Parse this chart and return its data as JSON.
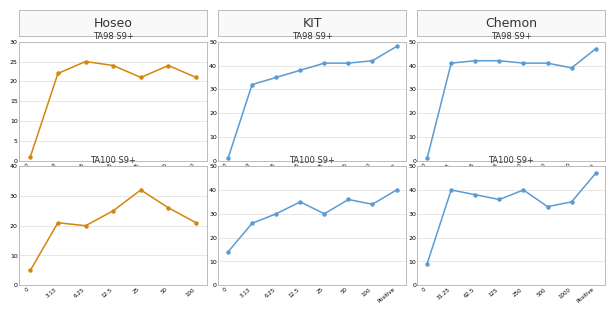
{
  "lab_titles": [
    "Hoseo",
    "KIT",
    "Chemon"
  ],
  "subplot_titles": [
    [
      "TA98 S9+",
      "TA100 S9+"
    ],
    [
      "TA98 S9+",
      "TA100 S9+"
    ],
    [
      "TA98 S9+",
      "TA100 S9+"
    ]
  ],
  "line_color_hoseo": "#D4860A",
  "line_color_kit": "#5B9BD5",
  "line_color_chemon": "#5B9BD5",
  "hoseo_ta98_x": [
    "0",
    "3.13",
    "6.25",
    "12.5",
    "25",
    "50",
    "100"
  ],
  "hoseo_ta98_y": [
    1,
    22,
    25,
    24,
    21,
    24,
    21
  ],
  "hoseo_ta100_x": [
    "0",
    "3.13",
    "6.25",
    "12.5",
    "25",
    "50",
    "100"
  ],
  "hoseo_ta100_y": [
    5,
    21,
    20,
    25,
    32,
    26,
    21
  ],
  "hoseo_ta98_ylim": [
    0,
    30
  ],
  "hoseo_ta98_yticks": [
    0,
    5,
    10,
    15,
    20,
    25,
    30
  ],
  "hoseo_ta100_ylim": [
    0,
    40
  ],
  "hoseo_ta100_yticks": [
    0,
    10,
    20,
    30,
    40
  ],
  "kit_ta98_x": [
    "0",
    "3.13",
    "6.25",
    "12.5",
    "25",
    "50",
    "100",
    "Positive"
  ],
  "kit_ta98_y": [
    1,
    32,
    35,
    38,
    41,
    41,
    42,
    48
  ],
  "kit_ta100_x": [
    "0",
    "3.13",
    "6.25",
    "12.5",
    "25",
    "50",
    "100",
    "Positive"
  ],
  "kit_ta100_y": [
    14,
    26,
    30,
    35,
    30,
    36,
    34,
    40
  ],
  "kit_ta98_ylim": [
    0,
    50
  ],
  "kit_ta98_yticks": [
    0,
    10,
    20,
    30,
    40,
    50
  ],
  "kit_ta100_ylim": [
    0,
    50
  ],
  "kit_ta100_yticks": [
    0,
    10,
    20,
    30,
    40,
    50
  ],
  "chemon_ta98_x": [
    "0",
    "31.25",
    "62.5",
    "125",
    "250",
    "500",
    "1000",
    "Positive"
  ],
  "chemon_ta98_y": [
    1,
    41,
    42,
    42,
    41,
    41,
    39,
    47
  ],
  "chemon_ta100_x": [
    "0",
    "31.25",
    "62.5",
    "125",
    "250",
    "500",
    "1000",
    "Positive"
  ],
  "chemon_ta100_y": [
    9,
    40,
    38,
    36,
    40,
    33,
    35,
    47
  ],
  "chemon_ta98_ylim": [
    0,
    50
  ],
  "chemon_ta98_yticks": [
    0,
    10,
    20,
    30,
    40,
    50
  ],
  "chemon_ta100_ylim": [
    0,
    50
  ],
  "chemon_ta100_yticks": [
    0,
    10,
    20,
    30,
    40,
    50
  ],
  "background_color": "#FFFFFF",
  "panel_bg": "#FFFFFF",
  "grid_color": "#DDDDDD",
  "border_color": "#BBBBBB"
}
